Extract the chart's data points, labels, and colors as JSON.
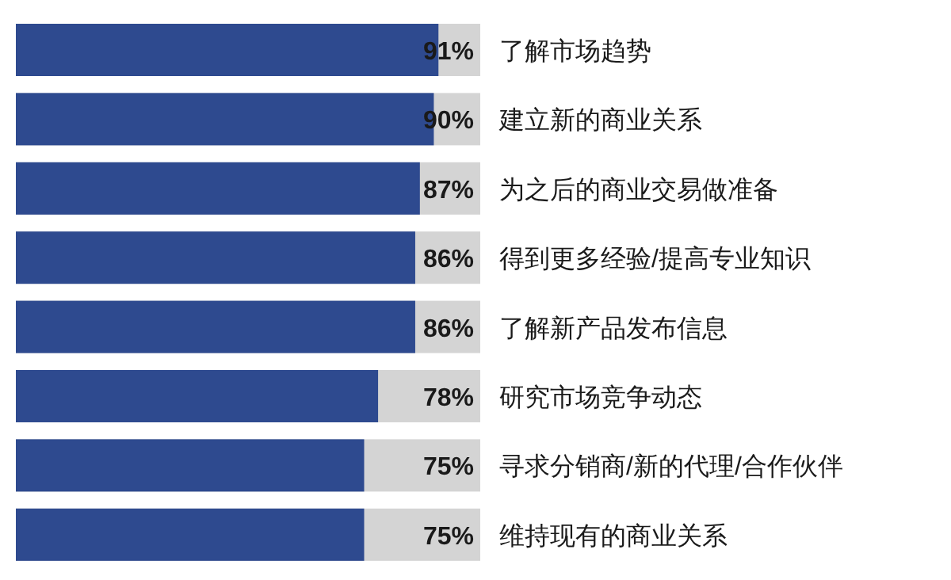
{
  "chart_data": {
    "type": "bar",
    "orientation": "horizontal",
    "categories": [
      "了解市场趋势",
      "建立新的商业关系",
      "为之后的商业交易做准备",
      "得到更多经验/提高专业知识",
      "了解新产品发布信息",
      "研究市场竞争动态",
      "寻求分销商/新的代理/合作伙伴",
      "维持现有的商业关系"
    ],
    "values": [
      91,
      90,
      87,
      86,
      86,
      78,
      75,
      75
    ],
    "value_labels": [
      "91%",
      "90%",
      "87%",
      "86%",
      "86%",
      "78%",
      "75%",
      "75%"
    ],
    "color": "#2e4a8f",
    "xlim": [
      0,
      100
    ],
    "tick_labels": "y"
  }
}
